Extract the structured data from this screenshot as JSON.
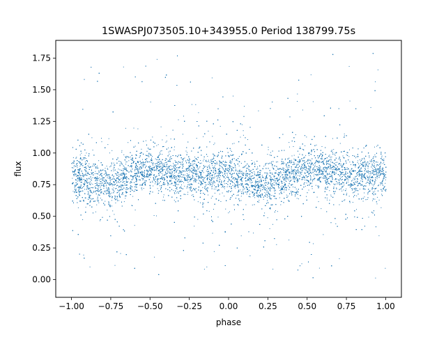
{
  "chart_data": {
    "type": "scatter",
    "title": "1SWASPJ073505.10+343955.0 Period 138799.75s",
    "xlabel": "phase",
    "ylabel": "flux",
    "xlim": [
      -1.1,
      1.1
    ],
    "ylim": [
      -0.14,
      1.89
    ],
    "x_ticks": [
      -1.0,
      -0.75,
      -0.5,
      -0.25,
      0.0,
      0.25,
      0.5,
      0.75,
      1.0
    ],
    "x_tick_labels": [
      "−1.00",
      "−0.75",
      "−0.50",
      "−0.25",
      "0.00",
      "0.25",
      "0.50",
      "0.75",
      "1.00"
    ],
    "y_ticks": [
      0.0,
      0.25,
      0.5,
      0.75,
      1.0,
      1.25,
      1.5,
      1.75
    ],
    "y_tick_labels": [
      "0.00",
      "0.25",
      "0.50",
      "0.75",
      "1.00",
      "1.25",
      "1.50",
      "1.75"
    ],
    "grid": false,
    "legend": "none",
    "point_color": "#1f77b4",
    "phase_range": [
      -1.0,
      1.0
    ],
    "flux_range": [
      0.0,
      1.8
    ],
    "light_curve_profile": {
      "phase": [
        -1.0,
        -0.9,
        -0.8,
        -0.7,
        -0.6,
        -0.5,
        -0.4,
        -0.3,
        -0.2,
        -0.1,
        0.0,
        0.1,
        0.2,
        0.3,
        0.4,
        0.5,
        0.6,
        0.7,
        0.8,
        0.9,
        1.0
      ],
      "median_flux": [
        0.84,
        0.79,
        0.74,
        0.79,
        0.85,
        0.87,
        0.86,
        0.84,
        0.82,
        0.83,
        0.83,
        0.79,
        0.74,
        0.79,
        0.85,
        0.87,
        0.86,
        0.84,
        0.82,
        0.83,
        0.84
      ],
      "core_half_width": [
        0.19,
        0.18,
        0.16,
        0.17,
        0.17,
        0.17,
        0.16,
        0.16,
        0.16,
        0.16,
        0.17,
        0.17,
        0.16,
        0.17,
        0.17,
        0.17,
        0.16,
        0.16,
        0.16,
        0.16,
        0.19
      ]
    }
  }
}
